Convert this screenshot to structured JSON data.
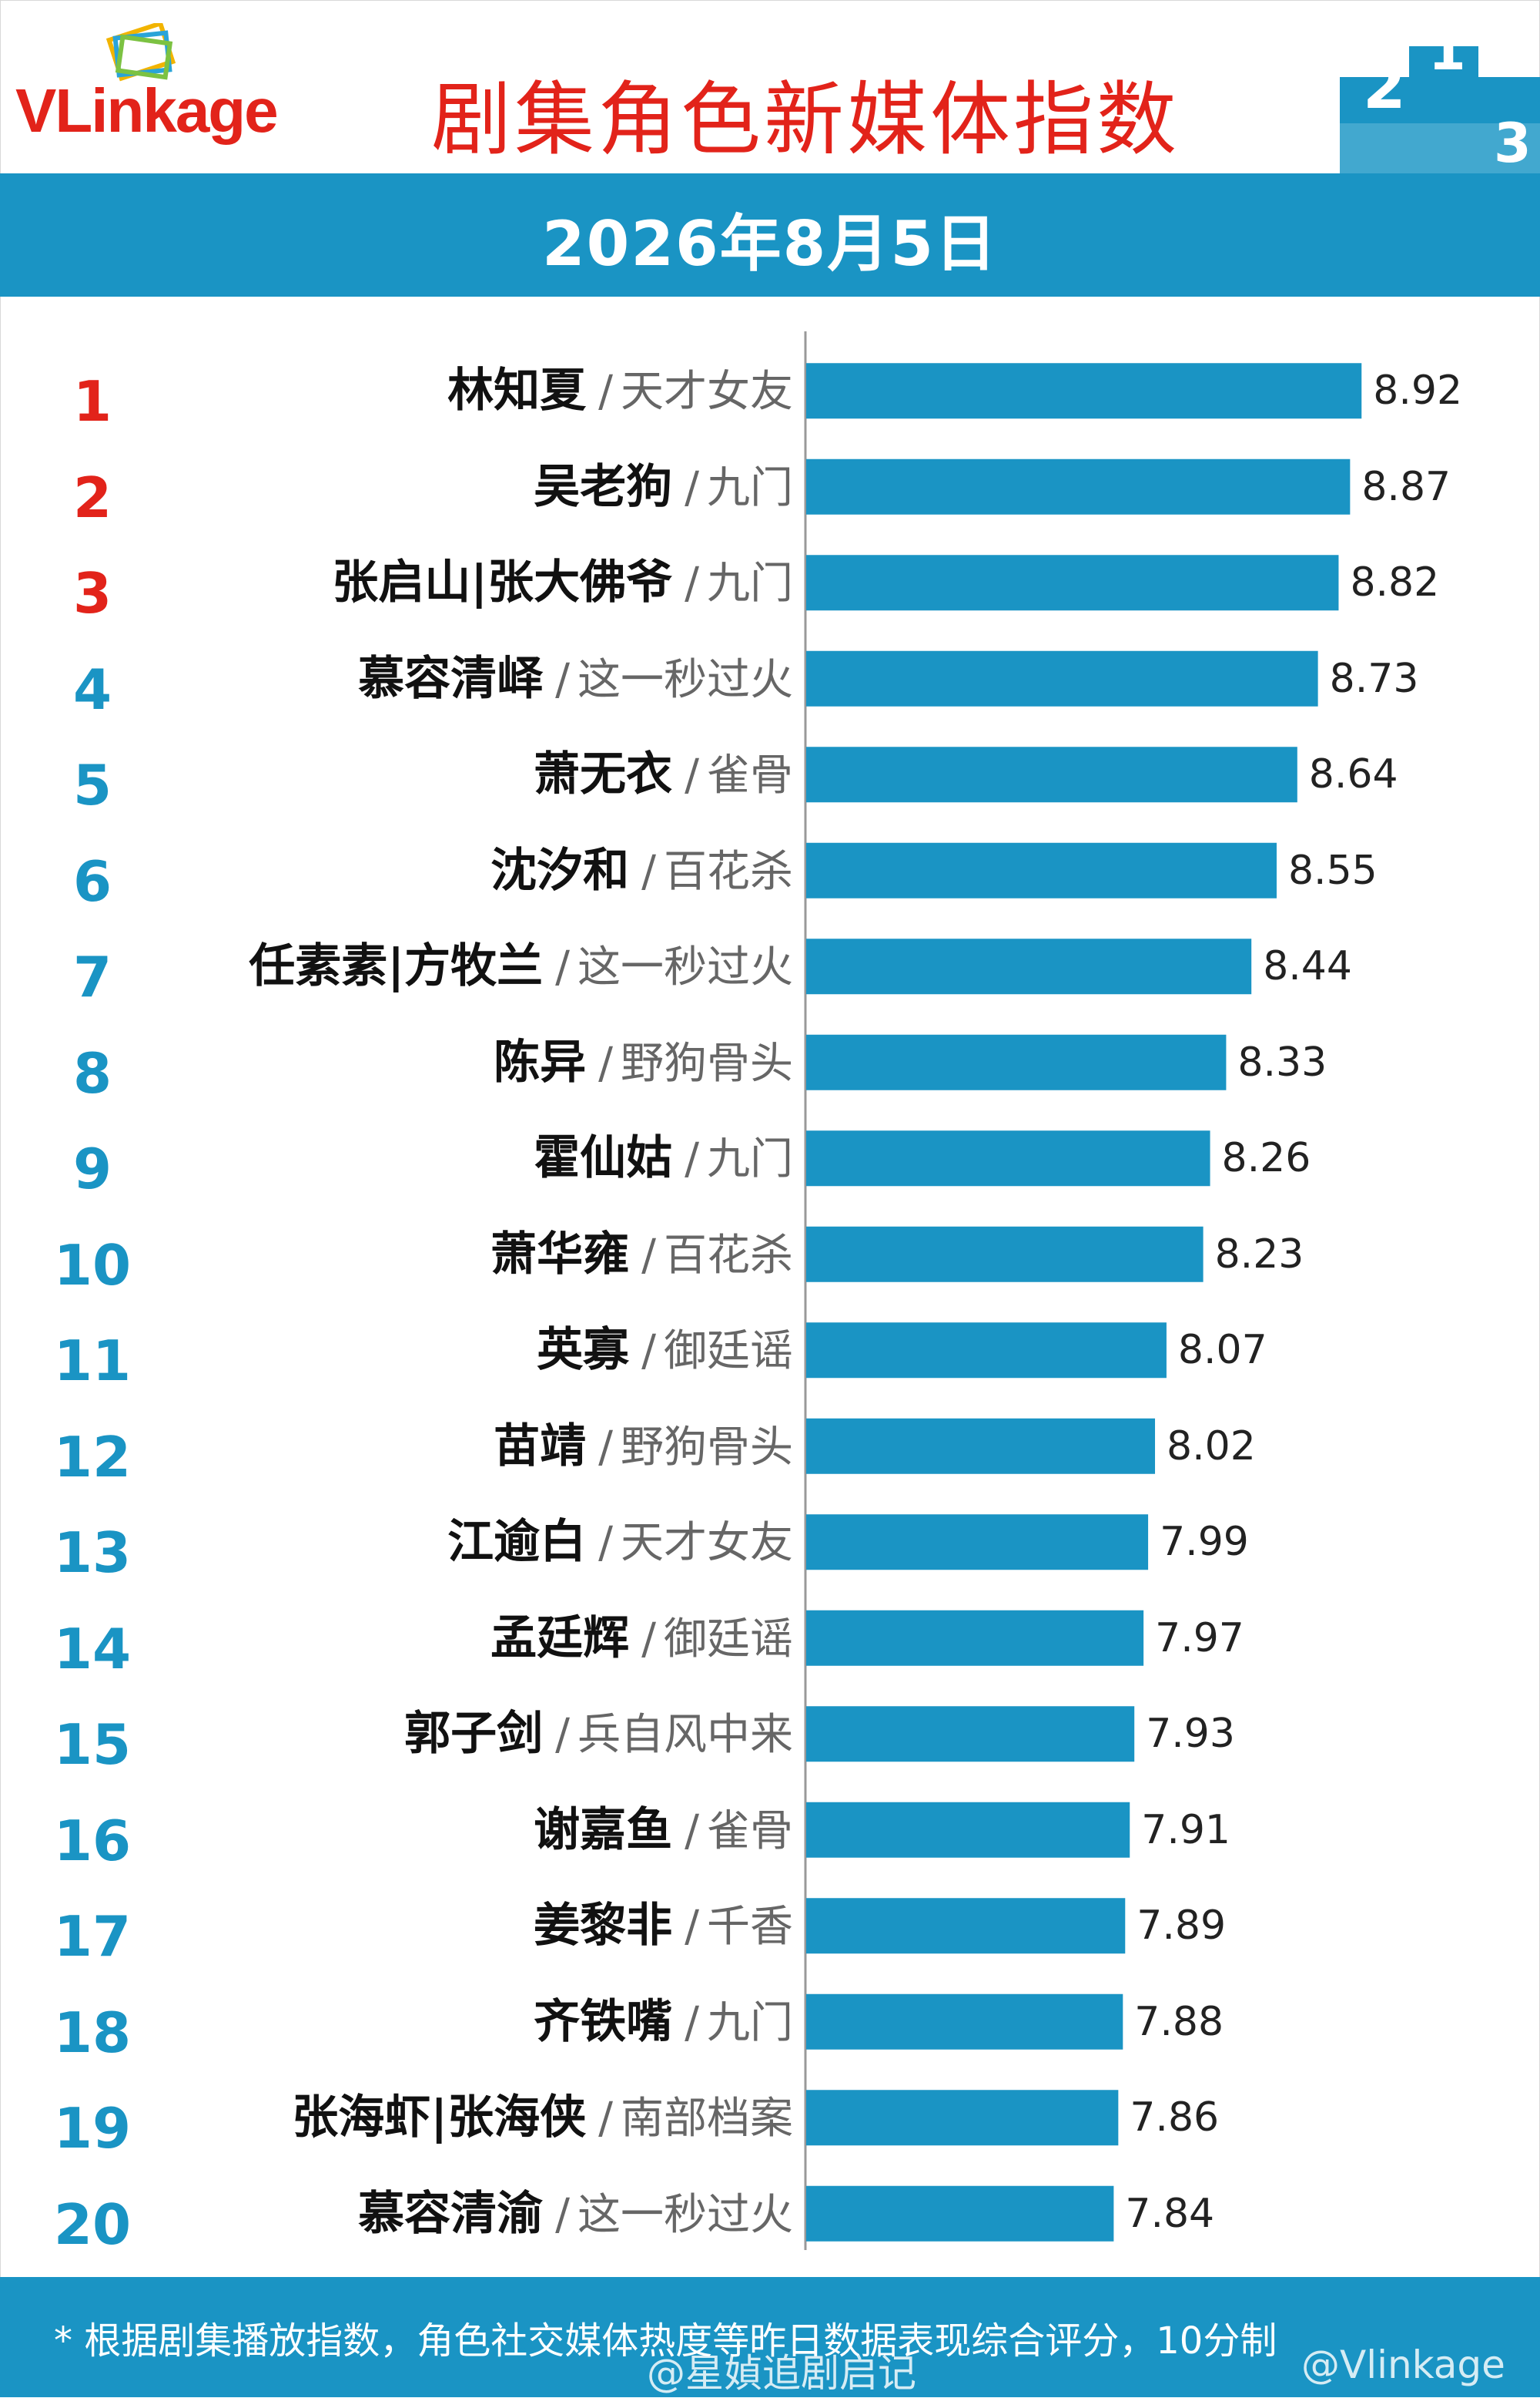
{
  "header": {
    "logo_text": "VLinkage",
    "title": "剧集角色新媒体指数",
    "date": "2026年8月5日",
    "podium_ranks": [
      "2",
      "1",
      "3"
    ]
  },
  "colors": {
    "bar": "#1a94c4",
    "rank_top3": "#e2231a",
    "rank_rest": "#1a94c4",
    "title": "#e2231a"
  },
  "chart_data": {
    "type": "bar",
    "orientation": "horizontal",
    "title": "剧集角色新媒体指数",
    "subtitle": "2026年8月5日",
    "xlim": [
      6.5,
      9.05
    ],
    "grid": false,
    "legend": "none",
    "rows": [
      {
        "rank": "1",
        "name": "林知夏",
        "drama": "天才女友",
        "value": 8.92,
        "value_label": "8.92"
      },
      {
        "rank": "2",
        "name": "吴老狗",
        "drama": "九门",
        "value": 8.87,
        "value_label": "8.87"
      },
      {
        "rank": "3",
        "name": "张启山|张大佛爷",
        "drama": "九门",
        "value": 8.82,
        "value_label": "8.82"
      },
      {
        "rank": "4",
        "name": "慕容清峄",
        "drama": "这一秒过火",
        "value": 8.73,
        "value_label": "8.73"
      },
      {
        "rank": "5",
        "name": "萧无衣",
        "drama": "雀骨",
        "value": 8.64,
        "value_label": "8.64"
      },
      {
        "rank": "6",
        "name": "沈汐和",
        "drama": "百花杀",
        "value": 8.55,
        "value_label": "8.55"
      },
      {
        "rank": "7",
        "name": "任素素|方牧兰",
        "drama": "这一秒过火",
        "value": 8.44,
        "value_label": "8.44"
      },
      {
        "rank": "8",
        "name": "陈异",
        "drama": "野狗骨头",
        "value": 8.33,
        "value_label": "8.33"
      },
      {
        "rank": "9",
        "name": "霍仙姑",
        "drama": "九门",
        "value": 8.26,
        "value_label": "8.26"
      },
      {
        "rank": "10",
        "name": "萧华雍",
        "drama": "百花杀",
        "value": 8.23,
        "value_label": "8.23"
      },
      {
        "rank": "11",
        "name": "英寡",
        "drama": "御廷谣",
        "value": 8.07,
        "value_label": "8.07"
      },
      {
        "rank": "12",
        "name": "苗靖",
        "drama": "野狗骨头",
        "value": 8.02,
        "value_label": "8.02"
      },
      {
        "rank": "13",
        "name": "江逾白",
        "drama": "天才女友",
        "value": 7.99,
        "value_label": "7.99"
      },
      {
        "rank": "14",
        "name": "孟廷辉",
        "drama": "御廷谣",
        "value": 7.97,
        "value_label": "7.97"
      },
      {
        "rank": "15",
        "name": "郭子剑",
        "drama": "兵自风中来",
        "value": 7.93,
        "value_label": "7.93"
      },
      {
        "rank": "16",
        "name": "谢嘉鱼",
        "drama": "雀骨",
        "value": 7.91,
        "value_label": "7.91"
      },
      {
        "rank": "17",
        "name": "姜黎非",
        "drama": "千香",
        "value": 7.89,
        "value_label": "7.89"
      },
      {
        "rank": "18",
        "name": "齐铁嘴",
        "drama": "九门",
        "value": 7.88,
        "value_label": "7.88"
      },
      {
        "rank": "19",
        "name": "张海虾|张海侠",
        "drama": "南部档案",
        "value": 7.86,
        "value_label": "7.86"
      },
      {
        "rank": "20",
        "name": "慕容清渝",
        "drama": "这一秒过火",
        "value": 7.84,
        "value_label": "7.84"
      }
    ]
  },
  "footer": {
    "note": "* 根据剧集播放指数，角色社交媒体热度等昨日数据表现综合评分，10分制",
    "watermark_left": "@星媜追剧启记",
    "watermark_right": "@Vlinkage"
  }
}
